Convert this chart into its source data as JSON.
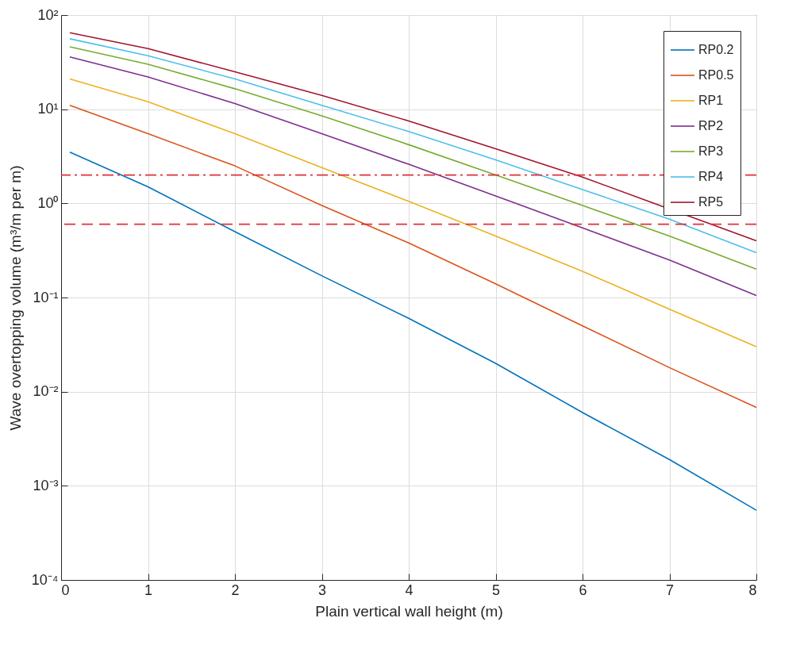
{
  "chart_data": {
    "type": "line",
    "xlabel": "Plain vertical wall height (m)",
    "ylabel": "Wave overtopping volume (m³/m per m)",
    "x": [
      0.1,
      1,
      2,
      3,
      4,
      5,
      6,
      7,
      8
    ],
    "series": [
      {
        "name": "RP0.2",
        "color": "#0072bd",
        "values": [
          3.5,
          1.5,
          0.5,
          0.17,
          0.06,
          0.02,
          0.006,
          0.0019,
          0.00055
        ]
      },
      {
        "name": "RP0.5",
        "color": "#d95319",
        "values": [
          11,
          5.5,
          2.5,
          0.95,
          0.38,
          0.14,
          0.05,
          0.018,
          0.0068
        ]
      },
      {
        "name": "RP1",
        "color": "#edb120",
        "values": [
          21,
          12,
          5.5,
          2.4,
          1.05,
          0.45,
          0.19,
          0.075,
          0.03
        ]
      },
      {
        "name": "RP2",
        "color": "#7e2f8e",
        "values": [
          36,
          22,
          11.5,
          5.5,
          2.6,
          1.2,
          0.55,
          0.25,
          0.105
        ]
      },
      {
        "name": "RP3",
        "color": "#77ac30",
        "values": [
          46,
          30,
          16.5,
          8.5,
          4.2,
          2.0,
          0.95,
          0.45,
          0.2
        ]
      },
      {
        "name": "RP4",
        "color": "#4dbeee",
        "values": [
          56,
          37,
          21,
          11,
          5.8,
          2.9,
          1.4,
          0.68,
          0.3
        ]
      },
      {
        "name": "RP5",
        "color": "#a2142f",
        "values": [
          65,
          44,
          25,
          14,
          7.5,
          3.8,
          1.9,
          null,
          0.4
        ]
      }
    ],
    "ref_lines": [
      {
        "axis": "y",
        "value": 2,
        "color": "#e0303a",
        "line_style": "dashdot"
      },
      {
        "axis": "y",
        "value": 0.6,
        "color": "#e0303a",
        "line_style": "dashed"
      }
    ],
    "xlim": [
      0,
      8
    ],
    "xticks": [
      0,
      1,
      2,
      3,
      4,
      5,
      6,
      7,
      8
    ],
    "ylim": [
      0.0001,
      100
    ],
    "yticks": [
      {
        "value": 0.0001,
        "label": "10⁻⁴"
      },
      {
        "value": 0.001,
        "label": "10⁻³"
      },
      {
        "value": 0.01,
        "label": "10⁻²"
      },
      {
        "value": 0.1,
        "label": "10⁻¹"
      },
      {
        "value": 1,
        "label": "10⁰"
      },
      {
        "value": 10,
        "label": "10¹"
      },
      {
        "value": 100,
        "label": "10²"
      }
    ],
    "log": true,
    "grid": true,
    "legend": "top right",
    "line_style": "solid",
    "marker": "none"
  }
}
